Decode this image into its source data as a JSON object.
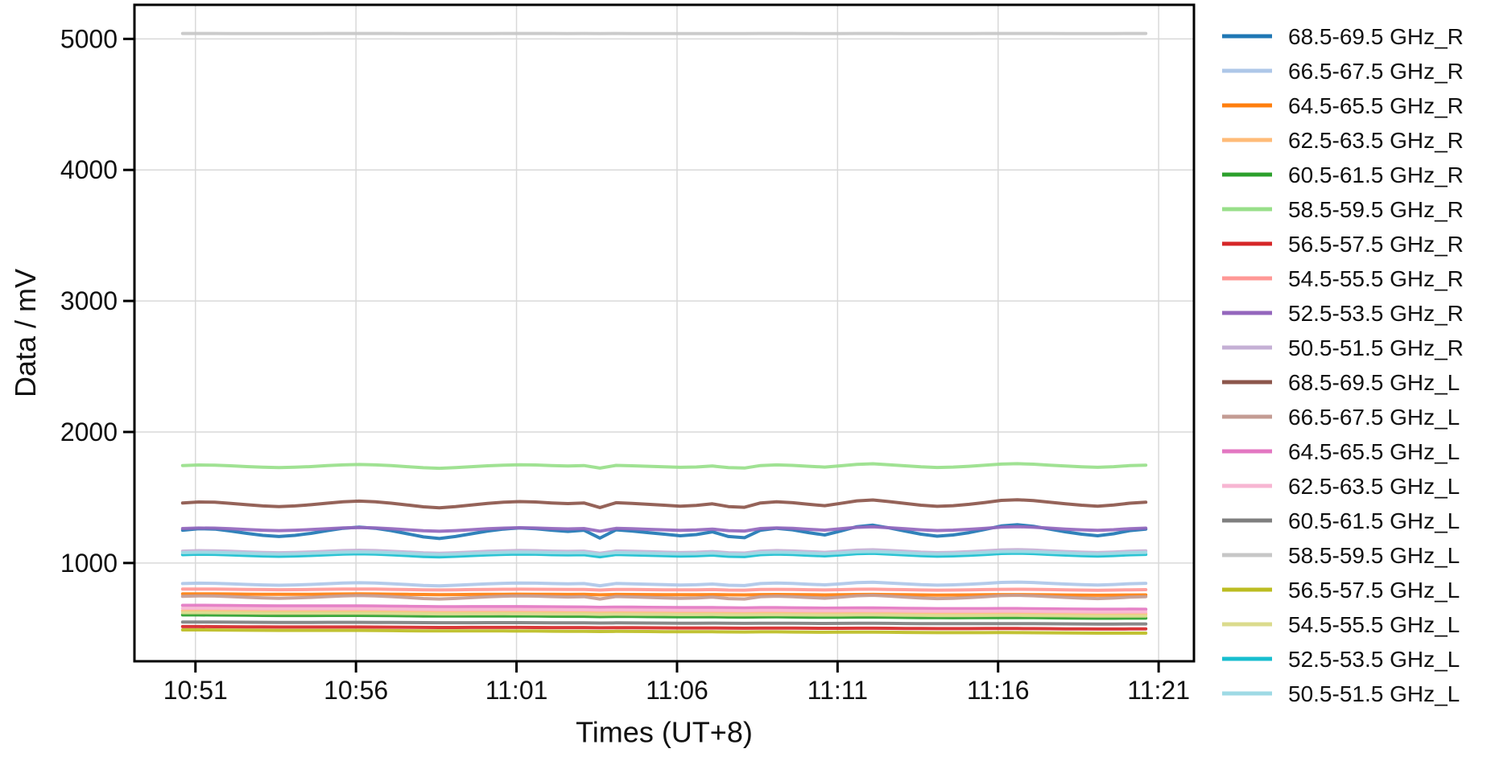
{
  "figure": {
    "xlabel": "Times (UT+8)",
    "ylabel": "Data / mV",
    "background": "#ffffff",
    "grid_color": "#d9d9d9",
    "spine_color": "#000000",
    "text_color": "#111111"
  },
  "chart_data": {
    "type": "line",
    "title": "",
    "xlabel": "Times (UT+8)",
    "ylabel": "Data / mV",
    "grid": true,
    "legend_position": "right-outside",
    "x_axis": {
      "kind": "time-of-day",
      "tick_labels": [
        "10:51",
        "10:56",
        "11:01",
        "11:06",
        "11:11",
        "11:16",
        "11:21"
      ],
      "tick_offsets_min": [
        0.4,
        5.4,
        10.4,
        15.4,
        20.4,
        25.4,
        30.4
      ],
      "xlim_offsets_min": [
        -1.5,
        31.5
      ],
      "data_start_clock": "10:50.6",
      "data_end_clock": "11:20.6"
    },
    "y_axis": {
      "tick_labels": [
        "1000",
        "2000",
        "3000",
        "4000",
        "5000"
      ],
      "ticks": [
        1000,
        2000,
        3000,
        4000,
        5000
      ],
      "ylim": [
        250,
        5260
      ],
      "unit": "mV"
    },
    "sampling_step_min": 0.5,
    "value_formula": "value_mV(i) = base_mv + wave_amp_mv * shared_waveform[i] + drift_mv * (t_i / 30), where t_i = i * 0.5 minutes after 10:50.6",
    "shared_waveform": [
      0.3,
      0.5,
      0.45,
      0.2,
      -0.1,
      -0.35,
      -0.5,
      -0.35,
      -0.1,
      0.25,
      0.55,
      0.7,
      0.55,
      0.25,
      -0.15,
      -0.55,
      -0.75,
      -0.5,
      -0.15,
      0.2,
      0.45,
      0.6,
      0.5,
      0.3,
      0.15,
      0.3,
      -0.7,
      0.35,
      0.2,
      0.0,
      -0.2,
      -0.4,
      -0.25,
      0.1,
      -0.5,
      -0.65,
      0.3,
      0.55,
      0.35,
      0.0,
      -0.3,
      0.2,
      0.75,
      0.95,
      0.6,
      0.2,
      -0.2,
      -0.45,
      -0.3,
      0.0,
      0.4,
      0.85,
      1.0,
      0.8,
      0.45,
      0.1,
      -0.2,
      -0.4,
      -0.15,
      0.25,
      0.45
    ],
    "series": [
      {
        "label": "68.5-69.5 GHz_R",
        "color": "#1f77b4",
        "base_mv": 1232,
        "wave_amp_mv": 60,
        "drift_mv": 0
      },
      {
        "label": "66.5-67.5 GHz_R",
        "color": "#aec7e8",
        "base_mv": 838,
        "wave_amp_mv": 16,
        "drift_mv": 0
      },
      {
        "label": "64.5-65.5 GHz_R",
        "color": "#ff7f0e",
        "base_mv": 763,
        "wave_amp_mv": 3,
        "drift_mv": -8
      },
      {
        "label": "62.5-63.5 GHz_R",
        "color": "#ffbb78",
        "base_mv": 635,
        "wave_amp_mv": 2,
        "drift_mv": -25
      },
      {
        "label": "60.5-61.5 GHz_R",
        "color": "#2ca02c",
        "base_mv": 603,
        "wave_amp_mv": 2,
        "drift_mv": -25
      },
      {
        "label": "58.5-59.5 GHz_R",
        "color": "#98df8a",
        "base_mv": 1738,
        "wave_amp_mv": 20,
        "drift_mv": 0
      },
      {
        "label": "56.5-57.5 GHz_R",
        "color": "#d62728",
        "base_mv": 514,
        "wave_amp_mv": 1.5,
        "drift_mv": -18
      },
      {
        "label": "54.5-55.5 GHz_R",
        "color": "#ff9896",
        "base_mv": 799,
        "wave_amp_mv": 5,
        "drift_mv": -5
      },
      {
        "label": "52.5-53.5 GHz_R",
        "color": "#9467bd",
        "base_mv": 1257,
        "wave_amp_mv": 20,
        "drift_mv": 0
      },
      {
        "label": "50.5-51.5 GHz_R",
        "color": "#c5b0d5",
        "base_mv": 1086,
        "wave_amp_mv": 16,
        "drift_mv": 0
      },
      {
        "label": "68.5-69.5 GHz_L",
        "color": "#8c564b",
        "base_mv": 1448,
        "wave_amp_mv": 35,
        "drift_mv": 0
      },
      {
        "label": "66.5-67.5 GHz_L",
        "color": "#c49c94",
        "base_mv": 740,
        "wave_amp_mv": 18,
        "drift_mv": -5
      },
      {
        "label": "64.5-65.5 GHz_L",
        "color": "#e377c2",
        "base_mv": 676,
        "wave_amp_mv": 2,
        "drift_mv": -30
      },
      {
        "label": "62.5-63.5 GHz_L",
        "color": "#f7b6d2",
        "base_mv": 654,
        "wave_amp_mv": 2,
        "drift_mv": -28
      },
      {
        "label": "60.5-61.5 GHz_L",
        "color": "#7f7f7f",
        "base_mv": 549,
        "wave_amp_mv": 1.5,
        "drift_mv": -15
      },
      {
        "label": "58.5-59.5 GHz_L",
        "color": "#c7c7c7",
        "base_mv": 5041,
        "wave_amp_mv": 0.5,
        "drift_mv": 0
      },
      {
        "label": "56.5-57.5 GHz_L",
        "color": "#bcbd22",
        "base_mv": 489,
        "wave_amp_mv": 1.5,
        "drift_mv": -25
      },
      {
        "label": "54.5-55.5 GHz_L",
        "color": "#dbdb8d",
        "base_mv": 620,
        "wave_amp_mv": 2,
        "drift_mv": -25
      },
      {
        "label": "52.5-53.5 GHz_L",
        "color": "#17becf",
        "base_mv": 1059,
        "wave_amp_mv": 16,
        "drift_mv": 0
      },
      {
        "label": "50.5-51.5 GHz_L",
        "color": "#9edae5",
        "base_mv": 1075,
        "wave_amp_mv": 13,
        "drift_mv": 0
      }
    ]
  }
}
